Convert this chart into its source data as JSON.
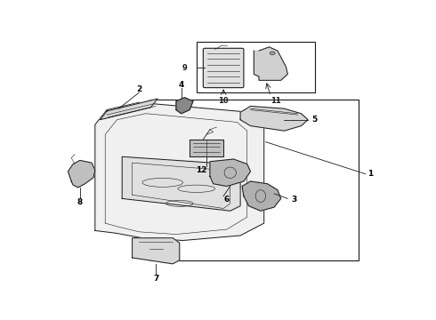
{
  "background_color": "#ffffff",
  "fig_width": 4.9,
  "fig_height": 3.6,
  "dpi": 100,
  "line_color": "#1a1a1a",
  "line_width": 0.7,
  "thin_lw": 0.4
}
